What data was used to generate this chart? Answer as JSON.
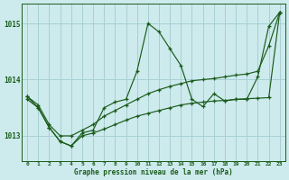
{
  "xlabel": "Graphe pression niveau de la mer (hPa)",
  "background_color": "#cdeaed",
  "grid_color": "#a8d0d4",
  "line_color": "#1a5c1a",
  "xlim": [
    -0.5,
    23.5
  ],
  "ylim": [
    1012.55,
    1015.35
  ],
  "yticks": [
    1013,
    1014,
    1015
  ],
  "xticks": [
    0,
    1,
    2,
    3,
    4,
    5,
    6,
    7,
    8,
    9,
    10,
    11,
    12,
    13,
    14,
    15,
    16,
    17,
    18,
    19,
    20,
    21,
    22,
    23
  ],
  "series1_x": [
    0,
    1,
    2,
    3,
    4,
    5,
    6,
    7,
    8,
    9,
    10,
    11,
    12,
    13,
    14,
    15,
    16,
    17,
    18,
    19,
    20,
    21,
    22,
    23
  ],
  "series1_y": [
    1013.7,
    1013.5,
    1013.15,
    1012.9,
    1012.82,
    1013.05,
    1013.1,
    1013.5,
    1013.6,
    1013.65,
    1014.15,
    1015.0,
    1014.85,
    1014.55,
    1014.25,
    1013.65,
    1013.52,
    1013.75,
    1013.62,
    1013.65,
    1013.65,
    1014.05,
    1014.95,
    1015.2
  ],
  "series2_x": [
    0,
    1,
    2,
    3,
    4,
    5,
    6,
    7,
    8,
    9,
    10,
    11,
    12,
    13,
    14,
    15,
    16,
    17,
    18,
    19,
    20,
    21,
    22,
    23
  ],
  "series2_y": [
    1013.7,
    1013.55,
    1013.2,
    1013.0,
    1013.0,
    1013.1,
    1013.2,
    1013.35,
    1013.45,
    1013.55,
    1013.65,
    1013.75,
    1013.82,
    1013.88,
    1013.93,
    1013.98,
    1014.0,
    1014.02,
    1014.05,
    1014.08,
    1014.1,
    1014.15,
    1014.6,
    1015.2
  ],
  "series3_x": [
    0,
    1,
    2,
    3,
    4,
    5,
    6,
    7,
    8,
    9,
    10,
    11,
    12,
    13,
    14,
    15,
    16,
    17,
    18,
    19,
    20,
    21,
    22,
    23
  ],
  "series3_y": [
    1013.65,
    1013.5,
    1013.15,
    1012.9,
    1012.82,
    1013.0,
    1013.05,
    1013.12,
    1013.2,
    1013.28,
    1013.35,
    1013.4,
    1013.45,
    1013.5,
    1013.55,
    1013.58,
    1013.6,
    1013.62,
    1013.63,
    1013.65,
    1013.66,
    1013.67,
    1013.68,
    1015.2
  ]
}
